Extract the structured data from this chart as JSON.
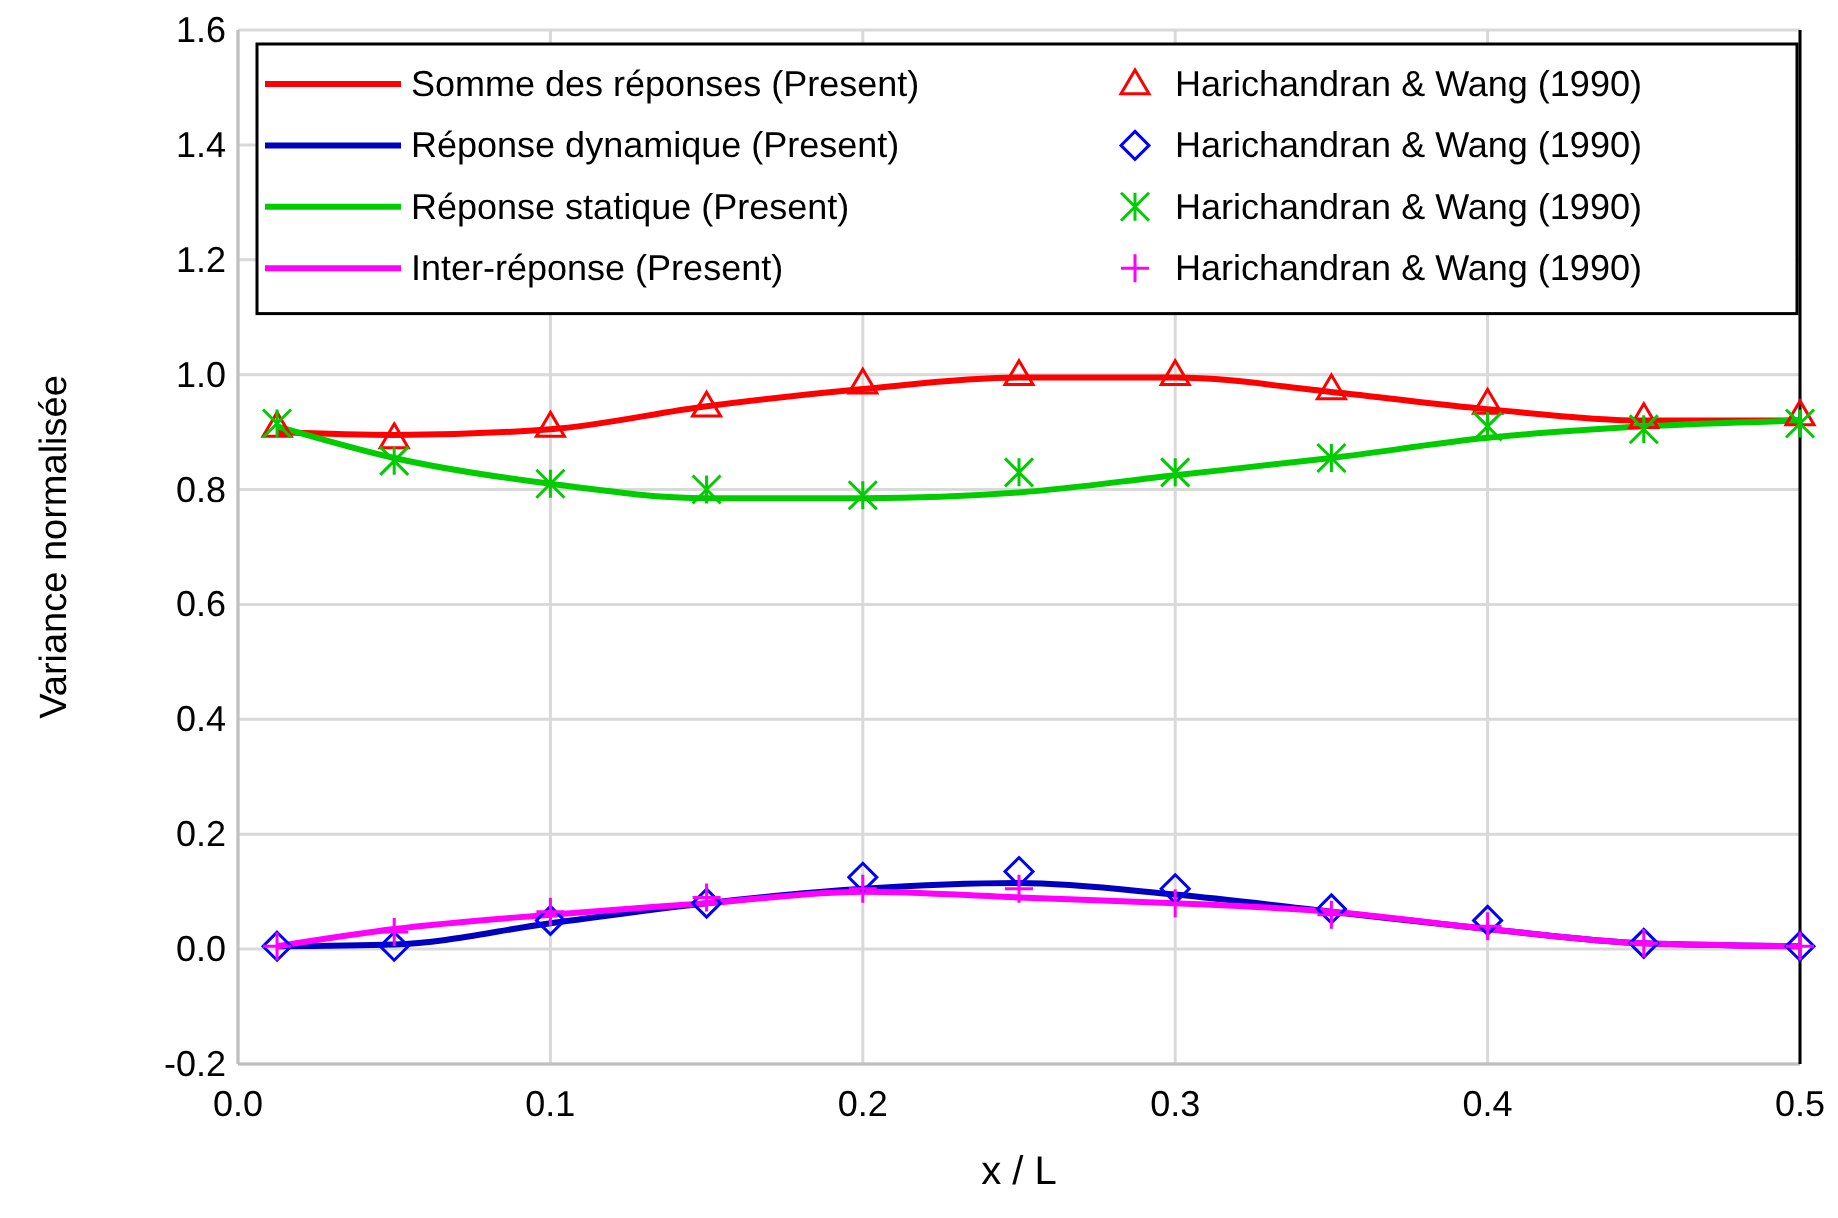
{
  "chart_data": {
    "type": "line",
    "xlabel": "x / L",
    "ylabel": "Variance normalisée",
    "x": [
      0.0125,
      0.05,
      0.1,
      0.15,
      0.2,
      0.25,
      0.3,
      0.35,
      0.4,
      0.45,
      0.5
    ],
    "xlim": [
      0,
      0.5
    ],
    "xticks": [
      {
        "value": 0,
        "label": "0.0"
      },
      0.1,
      0.2,
      0.3,
      0.4,
      0.5
    ],
    "ylim": [
      -0.2,
      1.6
    ],
    "yticks": [
      -0.2,
      {
        "value": 0,
        "label": "0.0"
      },
      0.2,
      0.4,
      0.6,
      0.8,
      {
        "value": 1,
        "label": "1.0"
      },
      1.2,
      1.4,
      1.6
    ],
    "grid": true,
    "legend": "top",
    "line_style": "solid",
    "series": [
      {
        "name": "Somme des réponses (Present)",
        "type": "line",
        "color": "#ff0000",
        "marker": "none",
        "values": [
          0.9,
          0.895,
          0.905,
          0.945,
          0.975,
          0.995,
          0.995,
          0.97,
          0.94,
          0.92,
          0.92
        ]
      },
      {
        "name": "Réponse dynamique (Present)",
        "type": "line",
        "color": "#0000c0",
        "marker": "none",
        "values": [
          0.005,
          0.008,
          0.045,
          0.08,
          0.105,
          0.115,
          0.095,
          0.065,
          0.035,
          0.01,
          0.005
        ]
      },
      {
        "name": "Réponse statique (Present)",
        "type": "line",
        "color": "#00cc00",
        "marker": "none",
        "values": [
          0.91,
          0.855,
          0.81,
          0.785,
          0.785,
          0.795,
          0.825,
          0.855,
          0.89,
          0.91,
          0.92
        ]
      },
      {
        "name": "Inter-réponse (Present)",
        "type": "line",
        "color": "#ff00ff",
        "marker": "none",
        "values": [
          0.005,
          0.035,
          0.06,
          0.08,
          0.1,
          0.09,
          0.08,
          0.065,
          0.035,
          0.01,
          0.005
        ]
      },
      {
        "name": "Harichandran & Wang (1990)",
        "type": "scatter",
        "color": "#ff0000",
        "marker": "triangle",
        "values": [
          0.91,
          0.89,
          0.91,
          0.945,
          0.985,
          1.0,
          1.0,
          0.975,
          0.95,
          0.925,
          0.93
        ]
      },
      {
        "name": "Harichandran & Wang (1990)",
        "type": "scatter",
        "color": "#0000ff",
        "marker": "diamond",
        "values": [
          0.005,
          0.005,
          0.05,
          0.08,
          0.125,
          0.135,
          0.105,
          0.07,
          0.05,
          0.01,
          0.005
        ]
      },
      {
        "name": "Harichandran & Wang (1990)",
        "type": "scatter",
        "color": "#00cc00",
        "values": [
          0.915,
          0.85,
          0.81,
          0.8,
          0.79,
          0.83,
          0.83,
          0.855,
          0.91,
          0.905,
          0.915
        ]
      },
      {
        "name": "Harichandran & Wang (1990)",
        "type": "scatter",
        "color": "#ff00ff",
        "marker": "cross",
        "values": [
          0.005,
          0.03,
          0.065,
          0.09,
          0.105,
          0.105,
          0.08,
          0.06,
          0.04,
          0.01,
          0.005
        ]
      }
    ]
  }
}
